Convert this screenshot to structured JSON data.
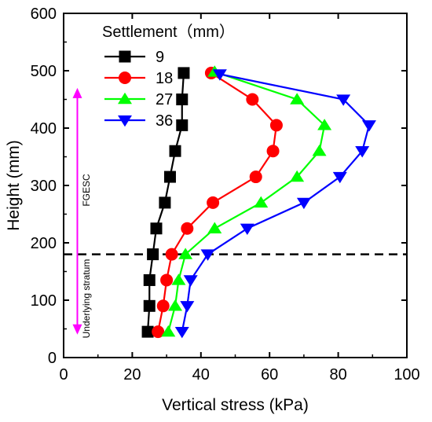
{
  "chart_data": {
    "type": "line",
    "xlabel": "Vertical stress  (kPa)",
    "ylabel": "Height (mm)",
    "xlim": [
      0,
      100
    ],
    "ylim": [
      0,
      600
    ],
    "xticks": [
      0,
      20,
      40,
      60,
      80,
      100
    ],
    "yticks": [
      0,
      100,
      200,
      300,
      400,
      500,
      600
    ],
    "legend_title": "Settlement（mm）",
    "legend_position": "top-left",
    "grid": false,
    "series": [
      {
        "name": "9",
        "color": "#000000",
        "marker": "square",
        "points": [
          {
            "x": 35.0,
            "y": 496
          },
          {
            "x": 34.5,
            "y": 450
          },
          {
            "x": 34.5,
            "y": 405
          },
          {
            "x": 32.5,
            "y": 360
          },
          {
            "x": 31.0,
            "y": 315
          },
          {
            "x": 29.5,
            "y": 270
          },
          {
            "x": 27.0,
            "y": 225
          },
          {
            "x": 26.0,
            "y": 180
          },
          {
            "x": 25.0,
            "y": 135
          },
          {
            "x": 25.0,
            "y": 90
          },
          {
            "x": 24.5,
            "y": 45
          }
        ]
      },
      {
        "name": "18",
        "color": "#ff0000",
        "marker": "circle",
        "points": [
          {
            "x": 43.0,
            "y": 496
          },
          {
            "x": 55.0,
            "y": 450
          },
          {
            "x": 62.0,
            "y": 405
          },
          {
            "x": 61.0,
            "y": 360
          },
          {
            "x": 56.0,
            "y": 315
          },
          {
            "x": 43.5,
            "y": 270
          },
          {
            "x": 36.0,
            "y": 225
          },
          {
            "x": 31.5,
            "y": 180
          },
          {
            "x": 30.0,
            "y": 135
          },
          {
            "x": 29.0,
            "y": 90
          },
          {
            "x": 27.5,
            "y": 45
          }
        ]
      },
      {
        "name": "27",
        "color": "#00ff00",
        "marker": "triangle-up",
        "points": [
          {
            "x": 44.0,
            "y": 498
          },
          {
            "x": 68.0,
            "y": 450
          },
          {
            "x": 76.0,
            "y": 405
          },
          {
            "x": 74.5,
            "y": 360
          },
          {
            "x": 68.0,
            "y": 315
          },
          {
            "x": 57.5,
            "y": 270
          },
          {
            "x": 44.0,
            "y": 225
          },
          {
            "x": 35.5,
            "y": 180
          },
          {
            "x": 33.5,
            "y": 135
          },
          {
            "x": 32.5,
            "y": 90
          },
          {
            "x": 30.5,
            "y": 45
          }
        ]
      },
      {
        "name": "36",
        "color": "#0000ff",
        "marker": "triangle-down",
        "points": [
          {
            "x": 45.5,
            "y": 494
          },
          {
            "x": 81.5,
            "y": 450
          },
          {
            "x": 89.0,
            "y": 405
          },
          {
            "x": 87.0,
            "y": 360
          },
          {
            "x": 80.5,
            "y": 315
          },
          {
            "x": 70.0,
            "y": 270
          },
          {
            "x": 53.5,
            "y": 225
          },
          {
            "x": 42.0,
            "y": 180
          },
          {
            "x": 37.0,
            "y": 135
          },
          {
            "x": 36.0,
            "y": 90
          },
          {
            "x": 34.5,
            "y": 45
          }
        ]
      }
    ],
    "reference_lines": [
      {
        "orientation": "horizontal",
        "y": 180,
        "style": "dashed",
        "color": "#000000"
      }
    ],
    "annotations": [
      {
        "text": "FGESC",
        "color": "#000000"
      },
      {
        "text": "Underlying stratum",
        "color": "#000000"
      }
    ],
    "arrows": [
      {
        "direction": "up",
        "color": "#ff00ff",
        "x": 4,
        "y_from": 180,
        "y_to": 470
      },
      {
        "direction": "down",
        "color": "#ff00ff",
        "x": 4,
        "y_from": 180,
        "y_to": 40
      }
    ]
  }
}
